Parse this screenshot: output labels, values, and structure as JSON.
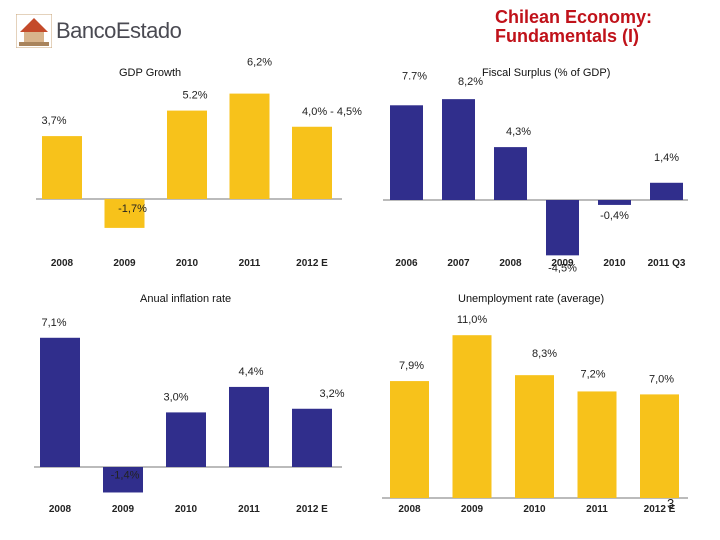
{
  "header": {
    "brand": "BancoEstado",
    "title_line1": "Chilean Economy:",
    "title_line2": "Fundamentals (I)",
    "page_number": "3"
  },
  "colors": {
    "yellow": "#f7c21b",
    "blue": "#302e8c",
    "title_red": "#c0121a"
  },
  "chart_data": [
    {
      "type": "bar",
      "title": "GDP Growth",
      "categories": [
        "2008",
        "2009",
        "2010",
        "2011",
        "2012 E"
      ],
      "values": [
        3.7,
        -1.7,
        5.2,
        6.2,
        4.25
      ],
      "labels": [
        "3,7%",
        "-1,7%",
        "5.2%",
        "6,2%",
        "4,0% - 4,5%"
      ],
      "color": "#f7c21b"
    },
    {
      "type": "bar",
      "title": "Fiscal Surplus (% of GDP)",
      "categories": [
        "2006",
        "2007",
        "2008",
        "2009",
        "2010",
        "2011 Q3"
      ],
      "values": [
        7.7,
        8.2,
        4.3,
        -4.5,
        -0.4,
        1.4
      ],
      "labels": [
        "7.7%",
        "8,2%",
        "4,3%",
        "-4,5%",
        "-0,4%",
        "1,4%"
      ],
      "color": "#302e8c"
    },
    {
      "type": "bar",
      "title": "Anual inflation rate",
      "categories": [
        "2008",
        "2009",
        "2010",
        "2011",
        "2012 E"
      ],
      "values": [
        7.1,
        -1.4,
        3.0,
        4.4,
        3.2
      ],
      "labels": [
        "7,1%",
        "-1,4%",
        "3,0%",
        "4,4%",
        "3,2%"
      ],
      "color": "#302e8c"
    },
    {
      "type": "bar",
      "title": "Unemployment rate (average)",
      "categories": [
        "2008",
        "2009",
        "2010",
        "2011",
        "2012 E"
      ],
      "values": [
        7.9,
        11.0,
        8.3,
        7.2,
        7.0
      ],
      "labels": [
        "7,9%",
        "11,0%",
        "8,3%",
        "7,2%",
        "7,0%"
      ],
      "color": "#f7c21b"
    }
  ]
}
